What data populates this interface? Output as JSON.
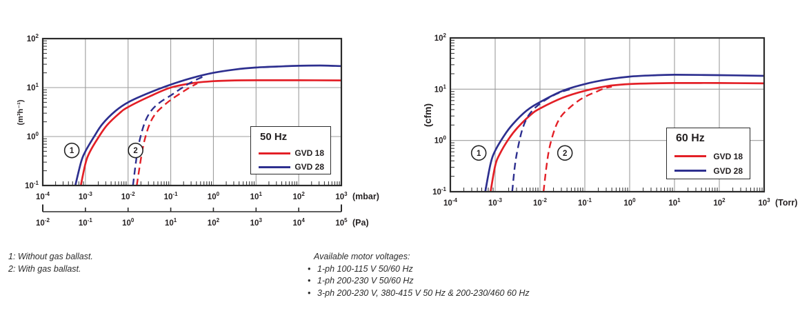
{
  "page": {
    "background": "#ffffff"
  },
  "colors": {
    "red": "#e31f26",
    "blue": "#2d2f8f",
    "grid": "#9c9c9c",
    "frame": "#2a2a2a",
    "text": "#231f20"
  },
  "footnotes": {
    "left": [
      "1: Without gas ballast.",
      "2: With gas ballast."
    ],
    "right_title": "Available motor voltages:",
    "bullet": "•",
    "right_items": [
      "1-ph 100-115 V 50/60 Hz",
      "1-ph 200-230 V 50/60 Hz",
      "3-ph 200-230 V, 380-415 V 50 Hz & 200-230/460 60 Hz"
    ]
  },
  "chart_data": [
    {
      "type": "line",
      "title": "50 Hz",
      "x_scale": "log",
      "y_scale": "log",
      "x_unit": "(mbar)",
      "x2_unit": "(Pa)",
      "y_unit": "(m³h⁻¹)",
      "xlim": [
        0.0001,
        1000.0
      ],
      "x2lim": [
        0.01,
        100000.0
      ],
      "ylim": [
        0.1,
        100
      ],
      "x_tick_exponents": [
        -4,
        -3,
        -2,
        -1,
        0,
        1,
        2,
        3
      ],
      "x2_tick_exponents": [
        -2,
        -1,
        0,
        1,
        2,
        3,
        4,
        5
      ],
      "y_tick_exponents": [
        2,
        1,
        0,
        -1
      ],
      "grid": true,
      "legend": {
        "position": "inside-right",
        "title": "50 Hz",
        "entries": [
          {
            "label": "GVD 18",
            "color": "red"
          },
          {
            "label": "GVD 28",
            "color": "blue"
          }
        ]
      },
      "annotations": [
        {
          "label": "1",
          "x": 0.00048,
          "y": 0.52
        },
        {
          "label": "2",
          "x": 0.015,
          "y": 0.52
        }
      ],
      "series": [
        {
          "name": "GVD 18",
          "color": "red",
          "style": "solid",
          "points": [
            [
              0.00078,
              0.1
            ],
            [
              0.001,
              0.28
            ],
            [
              0.00126,
              0.48
            ],
            [
              0.002,
              0.95
            ],
            [
              0.0032,
              1.7
            ],
            [
              0.0063,
              3.0
            ],
            [
              0.01,
              4.0
            ],
            [
              0.032,
              6.6
            ],
            [
              0.1,
              10.0
            ],
            [
              0.32,
              12.3
            ],
            [
              1.0,
              13.5
            ],
            [
              3.2,
              14.0
            ],
            [
              10,
              14.1
            ],
            [
              100,
              14.1
            ],
            [
              1000,
              14.0
            ]
          ]
        },
        {
          "name": "GVD 28",
          "color": "blue",
          "style": "solid",
          "points": [
            [
              0.00058,
              0.1
            ],
            [
              0.00079,
              0.3
            ],
            [
              0.001,
              0.5
            ],
            [
              0.0016,
              1.0
            ],
            [
              0.0025,
              1.8
            ],
            [
              0.005,
              3.3
            ],
            [
              0.01,
              5.0
            ],
            [
              0.032,
              7.9
            ],
            [
              0.1,
              11.5
            ],
            [
              0.32,
              15.8
            ],
            [
              1.0,
              20.0
            ],
            [
              3.2,
              23.4
            ],
            [
              10,
              25.7
            ],
            [
              31.6,
              26.9
            ],
            [
              100,
              27.9
            ],
            [
              316,
              28.2
            ],
            [
              1000,
              27.5
            ]
          ]
        },
        {
          "name": "GVD 18 with gas ballast",
          "color": "red",
          "style": "dashed",
          "points": [
            [
              0.016,
              0.1
            ],
            [
              0.02,
              0.35
            ],
            [
              0.024,
              0.8
            ],
            [
              0.032,
              1.8
            ],
            [
              0.045,
              3.0
            ],
            [
              0.071,
              4.4
            ],
            [
              0.1,
              5.6
            ],
            [
              0.16,
              7.4
            ],
            [
              0.25,
              9.5
            ],
            [
              0.35,
              11.2
            ],
            [
              0.42,
              12.2
            ]
          ]
        },
        {
          "name": "GVD 28 with gas ballast",
          "color": "blue",
          "style": "dashed",
          "points": [
            [
              0.013,
              0.1
            ],
            [
              0.016,
              0.4
            ],
            [
              0.019,
              0.9
            ],
            [
              0.025,
              2.0
            ],
            [
              0.035,
              3.4
            ],
            [
              0.056,
              5.0
            ],
            [
              0.1,
              6.9
            ],
            [
              0.16,
              9.1
            ],
            [
              0.25,
              11.7
            ],
            [
              0.4,
              14.5
            ],
            [
              0.58,
              16.8
            ]
          ]
        }
      ]
    },
    {
      "type": "line",
      "title": "60 Hz",
      "x_scale": "log",
      "y_scale": "log",
      "x_unit": "(Torr)",
      "y_unit": "(cfm)",
      "xlim": [
        0.0001,
        1000.0
      ],
      "ylim": [
        0.1,
        100
      ],
      "x_tick_exponents": [
        -4,
        -3,
        -2,
        -1,
        0,
        1,
        2,
        3
      ],
      "y_tick_exponents": [
        2,
        1,
        0,
        -1
      ],
      "grid": true,
      "legend": {
        "position": "inside-right",
        "title": "60 Hz",
        "entries": [
          {
            "label": "GVD 18",
            "color": "red"
          },
          {
            "label": "GVD 28",
            "color": "blue"
          }
        ]
      },
      "annotations": [
        {
          "label": "1",
          "x": 0.00043,
          "y": 0.57
        },
        {
          "label": "2",
          "x": 0.036,
          "y": 0.57
        }
      ],
      "series": [
        {
          "name": "GVD 18",
          "color": "red",
          "style": "solid",
          "points": [
            [
              0.00079,
              0.1
            ],
            [
              0.001,
              0.32
            ],
            [
              0.00126,
              0.54
            ],
            [
              0.002,
              1.07
            ],
            [
              0.0032,
              1.8
            ],
            [
              0.0063,
              3.2
            ],
            [
              0.01,
              4.2
            ],
            [
              0.032,
              6.8
            ],
            [
              0.1,
              9.3
            ],
            [
              0.32,
              11.5
            ],
            [
              1.0,
              12.6
            ],
            [
              3.2,
              13.0
            ],
            [
              10,
              13.2
            ],
            [
              100,
              13.2
            ],
            [
              1000,
              13.0
            ]
          ]
        },
        {
          "name": "GVD 28",
          "color": "blue",
          "style": "solid",
          "points": [
            [
              0.0006,
              0.1
            ],
            [
              0.00079,
              0.35
            ],
            [
              0.001,
              0.63
            ],
            [
              0.0016,
              1.26
            ],
            [
              0.0025,
              2.1
            ],
            [
              0.005,
              3.8
            ],
            [
              0.01,
              5.6
            ],
            [
              0.032,
              9.3
            ],
            [
              0.1,
              12.6
            ],
            [
              0.32,
              15.5
            ],
            [
              1.0,
              17.6
            ],
            [
              3.2,
              18.6
            ],
            [
              10,
              19.1
            ],
            [
              100,
              18.8
            ],
            [
              1000,
              18.2
            ]
          ]
        },
        {
          "name": "GVD 18 with gas ballast",
          "color": "red",
          "style": "dashed",
          "points": [
            [
              0.012,
              0.1
            ],
            [
              0.014,
              0.32
            ],
            [
              0.0165,
              0.76
            ],
            [
              0.022,
              1.8
            ],
            [
              0.03,
              3.0
            ],
            [
              0.045,
              4.3
            ],
            [
              0.071,
              5.9
            ],
            [
              0.11,
              7.4
            ],
            [
              0.18,
              8.9
            ],
            [
              0.28,
              10.5
            ],
            [
              0.4,
              11.2
            ]
          ]
        },
        {
          "name": "GVD 28 with gas ballast",
          "color": "blue",
          "style": "dashed",
          "points": [
            [
              0.0024,
              0.1
            ],
            [
              0.00275,
              0.32
            ],
            [
              0.0032,
              0.7
            ],
            [
              0.004,
              1.6
            ],
            [
              0.0052,
              2.8
            ],
            [
              0.0071,
              4.0
            ],
            [
              0.01,
              5.2
            ],
            [
              0.015,
              6.6
            ],
            [
              0.022,
              7.9
            ],
            [
              0.032,
              9.0
            ],
            [
              0.046,
              9.9
            ]
          ]
        }
      ]
    }
  ]
}
